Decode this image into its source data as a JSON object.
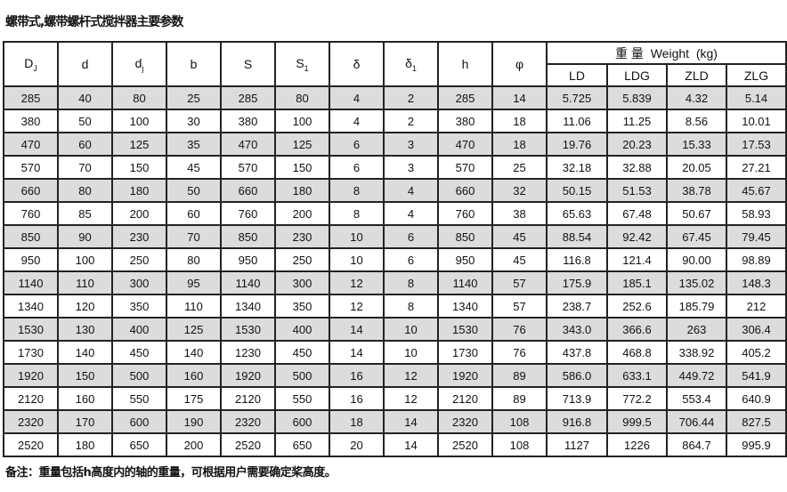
{
  "title": "螺带式,螺带螺杆式搅拌器主要参数",
  "columns": [
    {
      "main": "D",
      "sub": "J"
    },
    {
      "main": "d",
      "sub": ""
    },
    {
      "main": "d",
      "sub": "j"
    },
    {
      "main": "b",
      "sub": ""
    },
    {
      "main": "S",
      "sub": ""
    },
    {
      "main": "S",
      "sub": "1"
    },
    {
      "main": "δ",
      "sub": ""
    },
    {
      "main": "δ",
      "sub": "1"
    },
    {
      "main": "h",
      "sub": ""
    },
    {
      "main": "φ",
      "sub": ""
    }
  ],
  "weight_header": "重 量  Weight  (kg)",
  "weight_columns": [
    "LD",
    "LDG",
    "ZLD",
    "ZLG"
  ],
  "rows": [
    [
      "285",
      "40",
      "80",
      "25",
      "285",
      "80",
      "4",
      "2",
      "285",
      "14",
      "5.725",
      "5.839",
      "4.32",
      "5.14"
    ],
    [
      "380",
      "50",
      "100",
      "30",
      "380",
      "100",
      "4",
      "2",
      "380",
      "18",
      "11.06",
      "11.25",
      "8.56",
      "10.01"
    ],
    [
      "470",
      "60",
      "125",
      "35",
      "470",
      "125",
      "6",
      "3",
      "470",
      "18",
      "19.76",
      "20.23",
      "15.33",
      "17.53"
    ],
    [
      "570",
      "70",
      "150",
      "45",
      "570",
      "150",
      "6",
      "3",
      "570",
      "25",
      "32.18",
      "32.88",
      "20.05",
      "27.21"
    ],
    [
      "660",
      "80",
      "180",
      "50",
      "660",
      "180",
      "8",
      "4",
      "660",
      "32",
      "50.15",
      "51.53",
      "38.78",
      "45.67"
    ],
    [
      "760",
      "85",
      "200",
      "60",
      "760",
      "200",
      "8",
      "4",
      "760",
      "38",
      "65.63",
      "67.48",
      "50.67",
      "58.93"
    ],
    [
      "850",
      "90",
      "230",
      "70",
      "850",
      "230",
      "10",
      "6",
      "850",
      "45",
      "88.54",
      "92.42",
      "67.45",
      "79.45"
    ],
    [
      "950",
      "100",
      "250",
      "80",
      "950",
      "250",
      "10",
      "6",
      "950",
      "45",
      "116.8",
      "121.4",
      "90.00",
      "98.89"
    ],
    [
      "1140",
      "110",
      "300",
      "95",
      "1140",
      "300",
      "12",
      "8",
      "1140",
      "57",
      "175.9",
      "185.1",
      "135.02",
      "148.3"
    ],
    [
      "1340",
      "120",
      "350",
      "110",
      "1340",
      "350",
      "12",
      "8",
      "1340",
      "57",
      "238.7",
      "252.6",
      "185.79",
      "212"
    ],
    [
      "1530",
      "130",
      "400",
      "125",
      "1530",
      "400",
      "14",
      "10",
      "1530",
      "76",
      "343.0",
      "366.6",
      "263",
      "306.4"
    ],
    [
      "1730",
      "140",
      "450",
      "140",
      "1230",
      "450",
      "14",
      "10",
      "1730",
      "76",
      "437.8",
      "468.8",
      "338.92",
      "405.2"
    ],
    [
      "1920",
      "150",
      "500",
      "160",
      "1920",
      "500",
      "16",
      "12",
      "1920",
      "89",
      "586.0",
      "633.1",
      "449.72",
      "541.9"
    ],
    [
      "2120",
      "160",
      "550",
      "175",
      "2120",
      "550",
      "16",
      "12",
      "2120",
      "89",
      "713.9",
      "772.2",
      "553.4",
      "640.9"
    ],
    [
      "2320",
      "170",
      "600",
      "190",
      "2320",
      "600",
      "18",
      "14",
      "2320",
      "108",
      "916.8",
      "999.5",
      "706.44",
      "827.5"
    ],
    [
      "2520",
      "180",
      "650",
      "200",
      "2520",
      "650",
      "20",
      "14",
      "2520",
      "108",
      "1127",
      "1226",
      "864.7",
      "995.9"
    ]
  ],
  "note": "备注：重量包括h高度内的轴的重量，可根据用户需要确定桨高度。"
}
